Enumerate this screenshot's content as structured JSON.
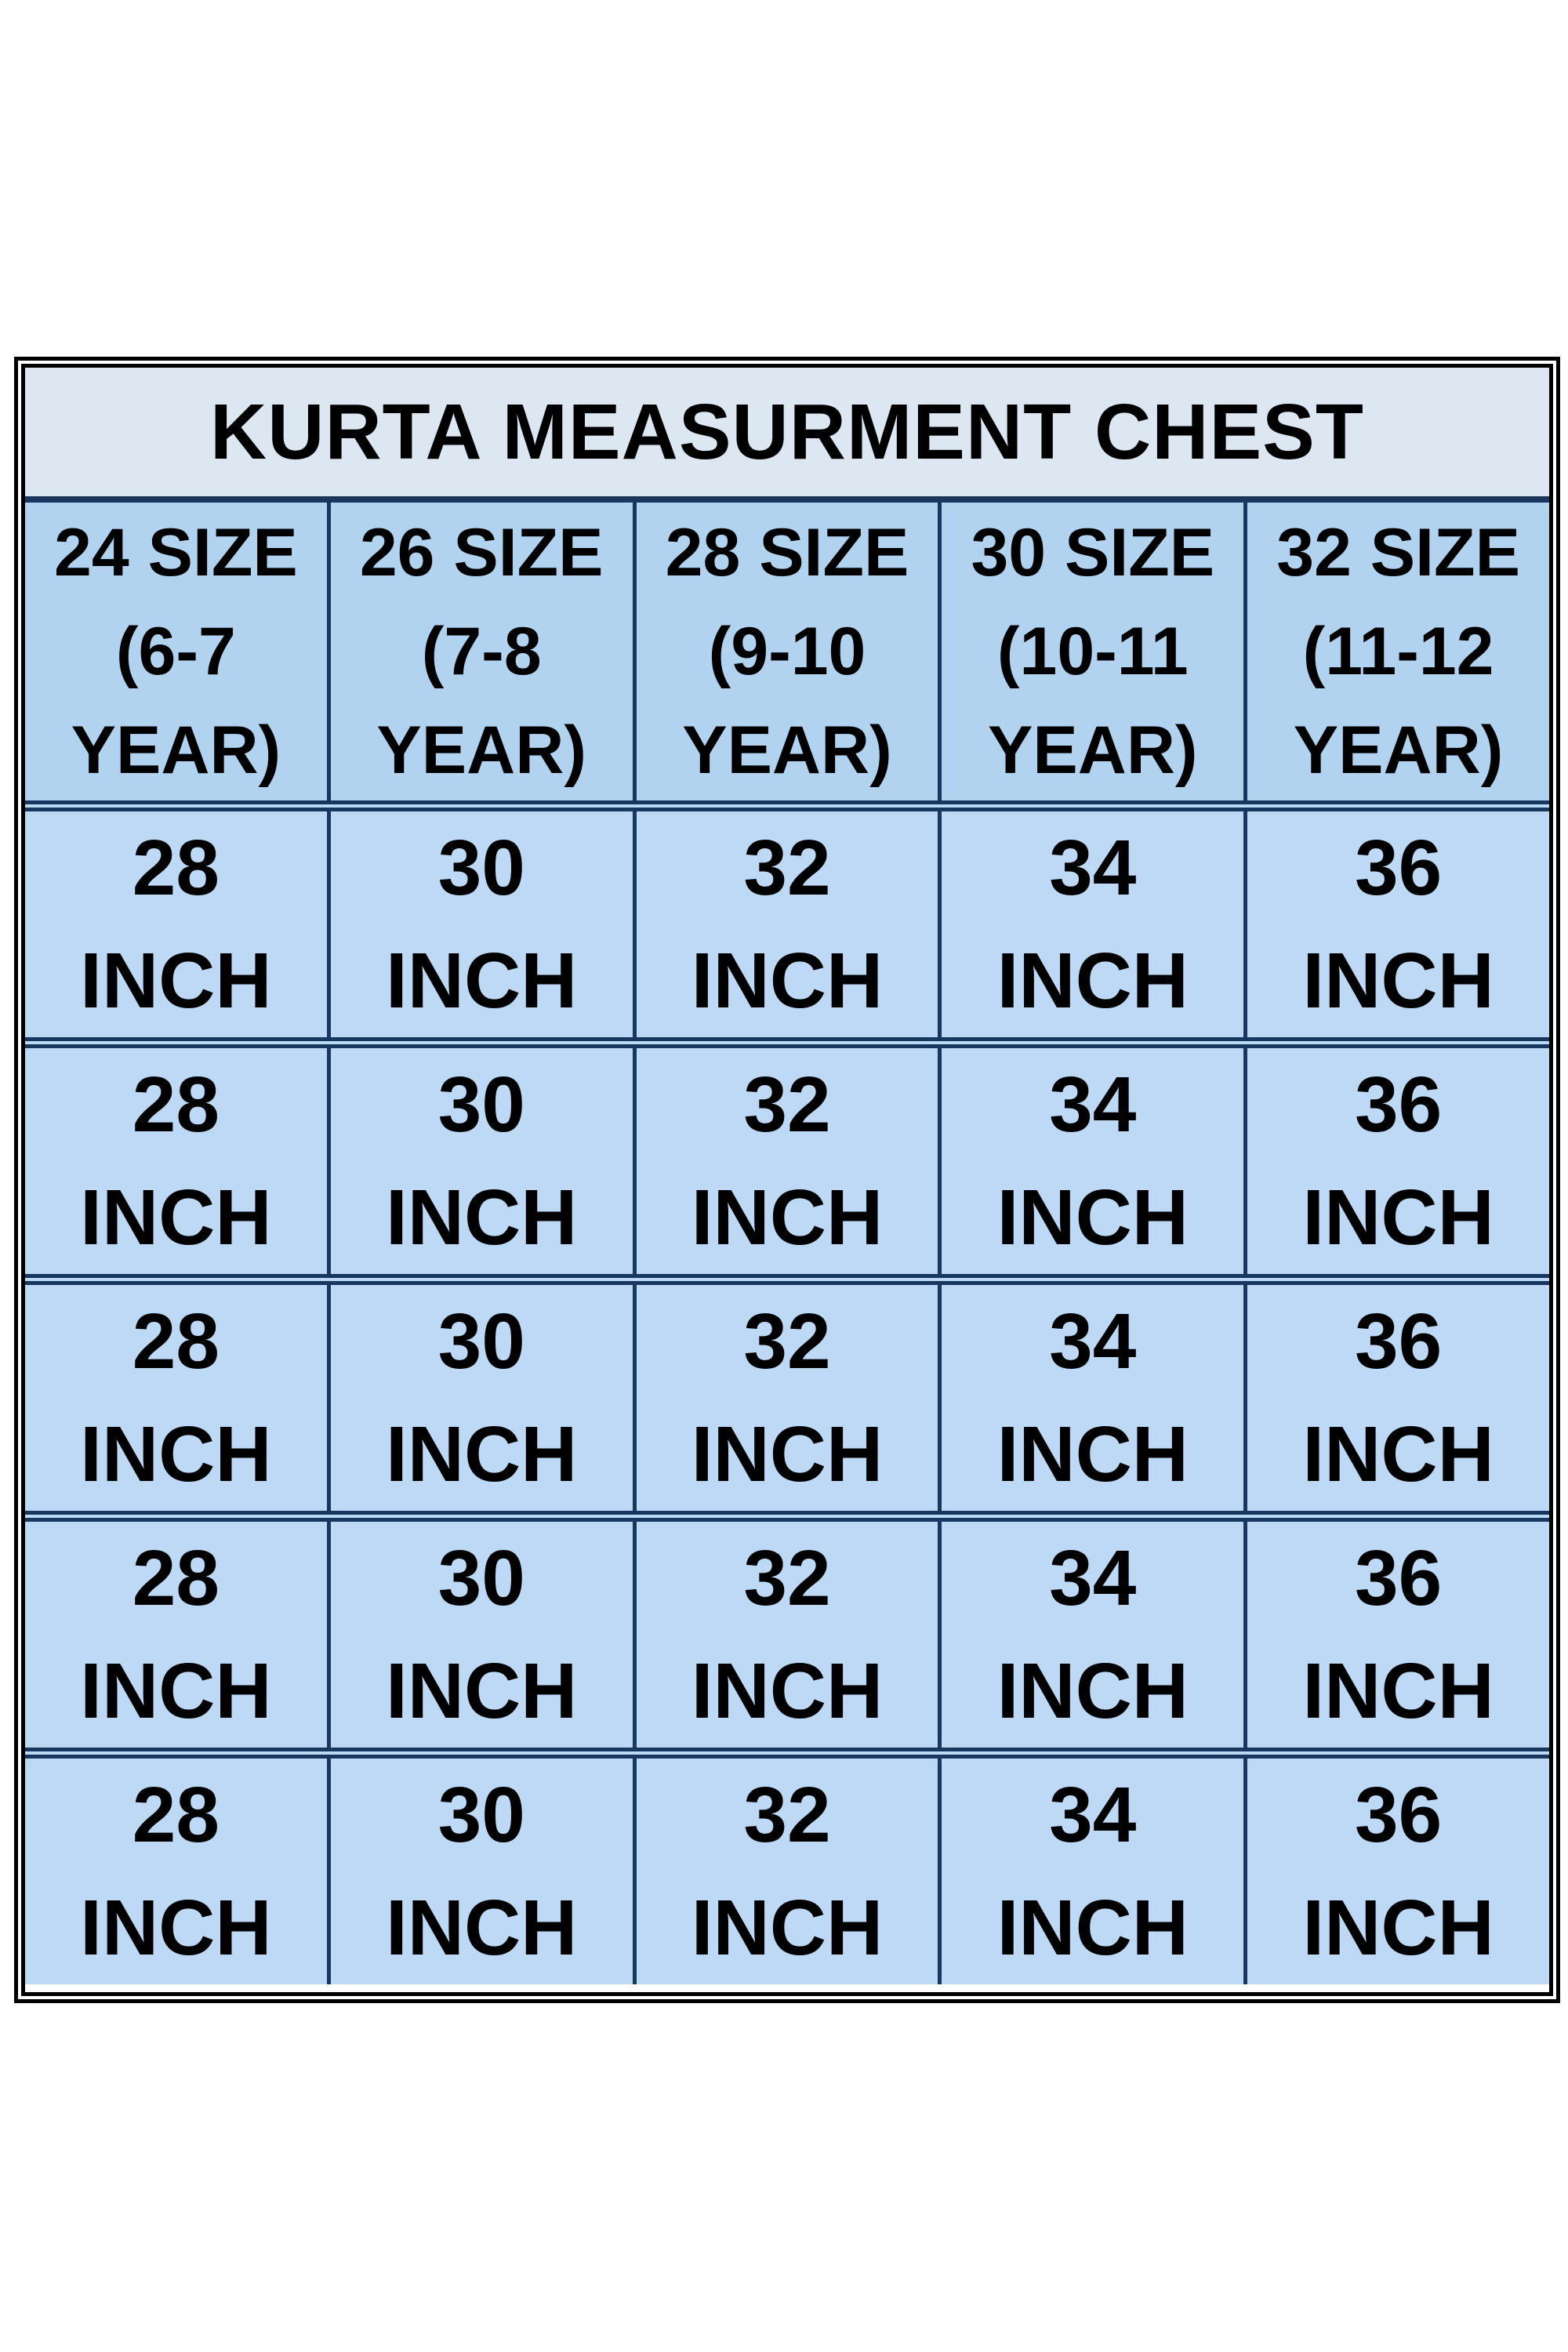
{
  "colors": {
    "page_bg": "#ffffff",
    "outer_border": "#000000",
    "navy_border": "#17375e",
    "title_bg": "#dce7f2",
    "header_bg": "#b2d3f0",
    "cell_bg": "#bed9f6",
    "text_color": "#000000"
  },
  "size_chart": {
    "title": "KURTA MEASURMENT CHEST",
    "columns": [
      {
        "size_label": "24 SIZE",
        "age_range": "(6-7",
        "year_suffix": "YEAR)"
      },
      {
        "size_label": "26 SIZE",
        "age_range": "(7-8",
        "year_suffix": "YEAR)"
      },
      {
        "size_label": "28 SIZE",
        "age_range": "(9-10",
        "year_suffix": "YEAR)"
      },
      {
        "size_label": "30 SIZE",
        "age_range": "(10-11",
        "year_suffix": "YEAR)"
      },
      {
        "size_label": "32 SIZE",
        "age_range": "(11-12",
        "year_suffix": "YEAR)"
      }
    ],
    "rows": [
      {
        "cells": [
          {
            "value": "28",
            "unit": "INCH"
          },
          {
            "value": "30",
            "unit": "INCH"
          },
          {
            "value": "32",
            "unit": "INCH"
          },
          {
            "value": "34",
            "unit": "INCH"
          },
          {
            "value": "36",
            "unit": "INCH"
          }
        ]
      },
      {
        "cells": [
          {
            "value": "28",
            "unit": "INCH"
          },
          {
            "value": "30",
            "unit": "INCH"
          },
          {
            "value": "32",
            "unit": "INCH"
          },
          {
            "value": "34",
            "unit": "INCH"
          },
          {
            "value": "36",
            "unit": "INCH"
          }
        ]
      },
      {
        "cells": [
          {
            "value": "28",
            "unit": "INCH"
          },
          {
            "value": "30",
            "unit": "INCH"
          },
          {
            "value": "32",
            "unit": "INCH"
          },
          {
            "value": "34",
            "unit": "INCH"
          },
          {
            "value": "36",
            "unit": "INCH"
          }
        ]
      },
      {
        "cells": [
          {
            "value": "28",
            "unit": "INCH"
          },
          {
            "value": "30",
            "unit": "INCH"
          },
          {
            "value": "32",
            "unit": "INCH"
          },
          {
            "value": "34",
            "unit": "INCH"
          },
          {
            "value": "36",
            "unit": "INCH"
          }
        ]
      },
      {
        "cells": [
          {
            "value": "28",
            "unit": "INCH"
          },
          {
            "value": "30",
            "unit": "INCH"
          },
          {
            "value": "32",
            "unit": "INCH"
          },
          {
            "value": "34",
            "unit": "INCH"
          },
          {
            "value": "36",
            "unit": "INCH"
          }
        ]
      }
    ]
  }
}
